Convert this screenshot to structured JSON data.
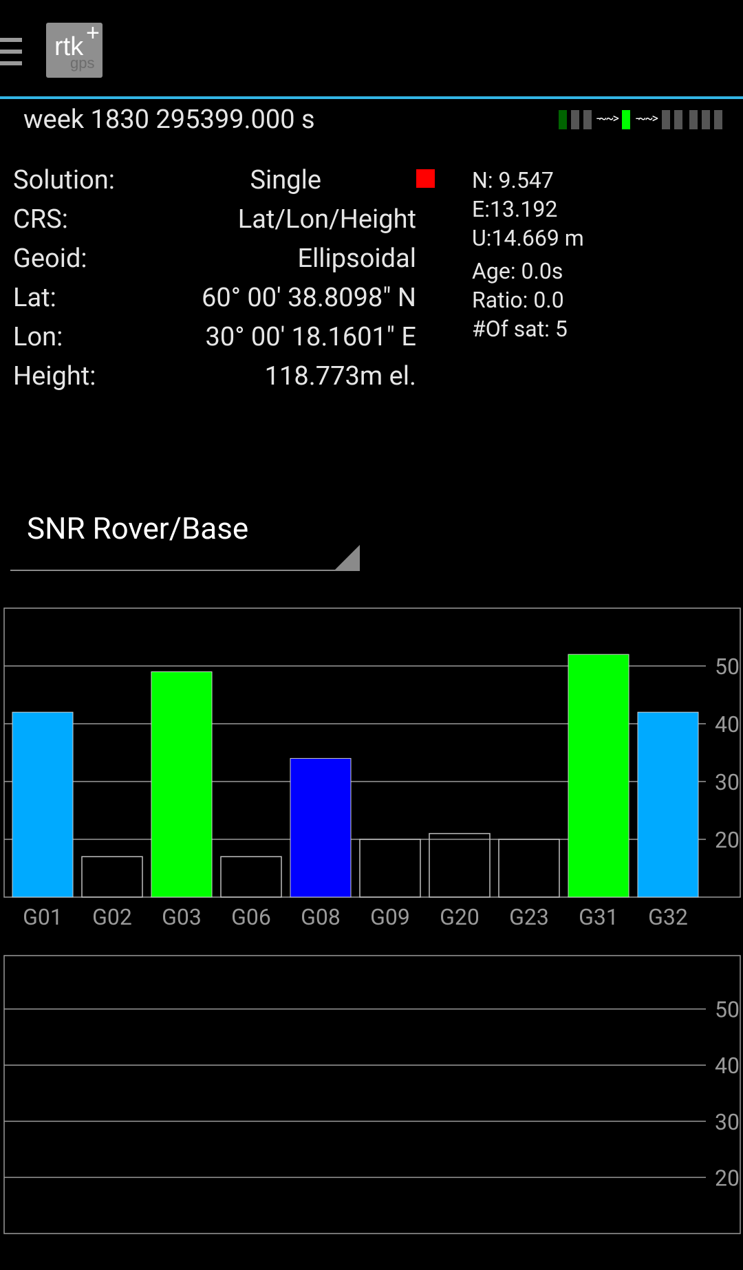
{
  "app": {
    "logo_text": "rtk",
    "logo_plus": "+",
    "logo_sub": "gps"
  },
  "status": {
    "time": "week 1830 295399.000 s",
    "indicator_colors": {
      "active": "#00ff00",
      "dim": "#006400",
      "idle": "#555555"
    }
  },
  "solution": {
    "rows": [
      {
        "label": "Solution:",
        "value": "Single"
      },
      {
        "label": "CRS:",
        "value": "Lat/Lon/Height"
      },
      {
        "label": "Geoid:",
        "value": "Ellipsoidal"
      },
      {
        "label": "Lat:",
        "value": "60° 00' 38.8098\" N"
      },
      {
        "label": "Lon:",
        "value": "30° 00' 18.1601\" E"
      },
      {
        "label": "Height:",
        "value": "118.773m el."
      }
    ],
    "status_color": "#ff0000"
  },
  "accuracy": {
    "n": "N: 9.547",
    "e": "E:13.192",
    "u": "U:14.669 m",
    "age": "Age: 0.0s",
    "ratio": "Ratio: 0.0",
    "sats": "#Of sat: 5"
  },
  "spinner": {
    "selected": "SNR Rover/Base"
  },
  "chart_data": [
    {
      "type": "bar",
      "categories": [
        "G01",
        "G02",
        "G03",
        "G06",
        "G08",
        "G09",
        "G20",
        "G23",
        "G31",
        "G32"
      ],
      "values": [
        42,
        17,
        49,
        17,
        34,
        20,
        21,
        20,
        52,
        42
      ],
      "colors": [
        "#00aaff",
        "outline",
        "#00ff00",
        "outline",
        "#0000ff",
        "outline",
        "outline",
        "outline",
        "#00ff00",
        "#00aaff"
      ],
      "yticks": [
        20,
        30,
        40,
        50
      ],
      "ylim": [
        10,
        60
      ],
      "grid": true
    },
    {
      "type": "bar",
      "categories": [],
      "values": [],
      "yticks": [
        20,
        30,
        40,
        50
      ],
      "ylim": [
        10,
        60
      ],
      "grid": true
    }
  ]
}
